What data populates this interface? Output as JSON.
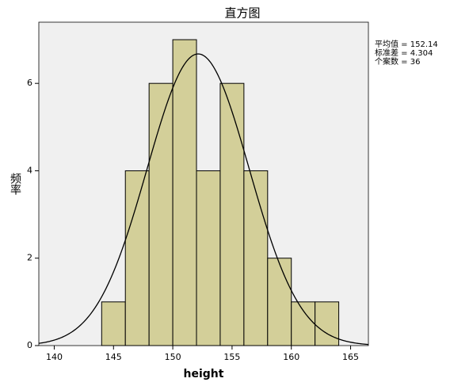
{
  "chart_data": {
    "type": "histogram",
    "title": "直方图",
    "x_label": "height",
    "y_label": "频率",
    "bins": [
      144,
      146,
      148,
      150,
      152,
      154,
      156,
      158,
      160,
      162,
      164
    ],
    "values": [
      1,
      4,
      6,
      7,
      4,
      6,
      4,
      2,
      1,
      1
    ],
    "color": "#d3cf99",
    "curve_color": "#000000",
    "xlim": [
      138.7,
      166.5
    ],
    "xticks": [
      140,
      145,
      150,
      155,
      160,
      165
    ],
    "ylim": [
      0,
      7.4
    ],
    "yticks": [
      0,
      2,
      4,
      6
    ],
    "stats": {
      "mean": {
        "value": 152.14,
        "label": "平均值 = 152.14"
      },
      "sd": {
        "value": 4.304,
        "label": "标准差 = 4.304"
      },
      "n": {
        "value": 36,
        "label": "个案数 = 36"
      }
    }
  }
}
